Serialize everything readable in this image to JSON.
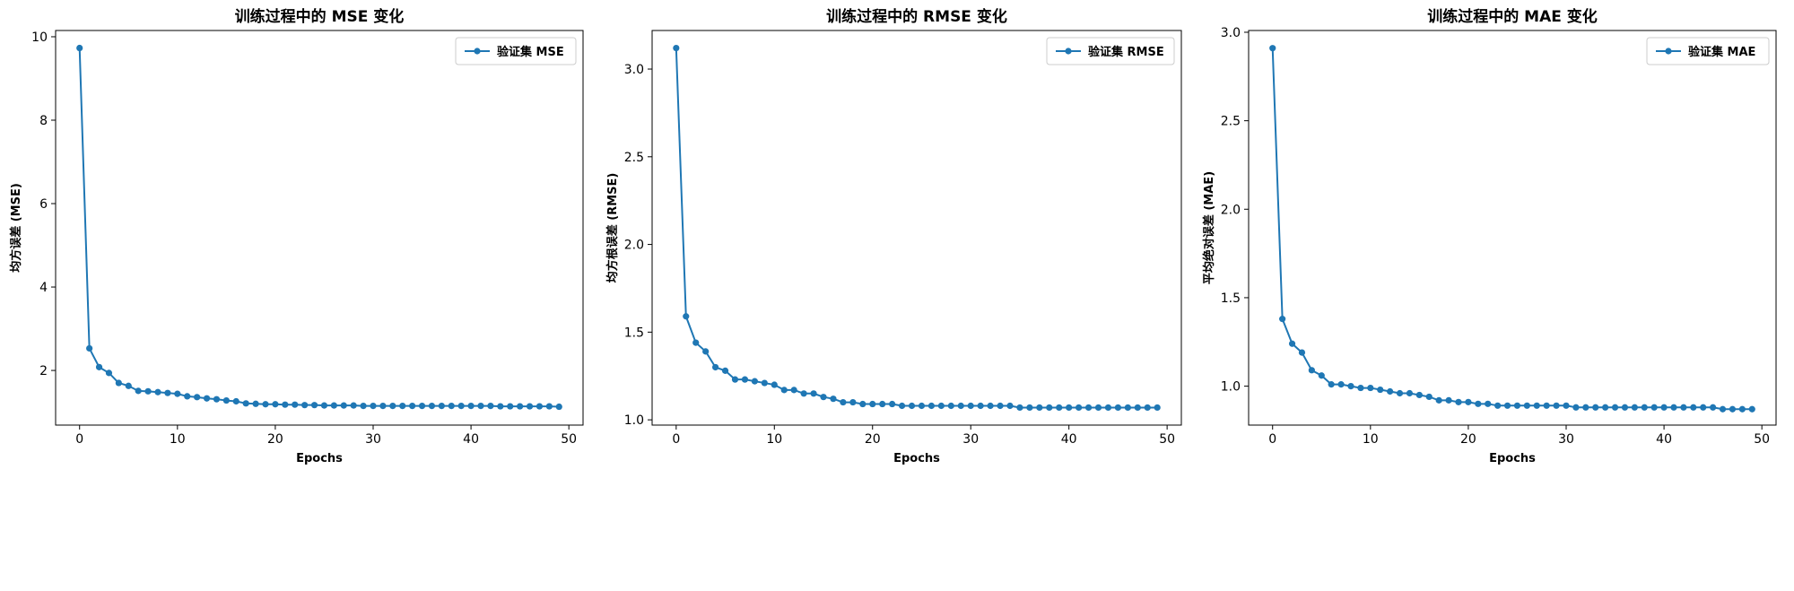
{
  "colors": {
    "series": "#1f77b4",
    "axis": "#000000",
    "legend_border": "#cccccc"
  },
  "chart_data": [
    {
      "type": "line",
      "title": "训练过程中的 MSE 变化",
      "xlabel": "Epochs",
      "ylabel": "均方误差 (MSE)",
      "xlim": [
        -2.45,
        51.45
      ],
      "ylim": [
        0.69,
        10.15
      ],
      "xticks": [
        0,
        10,
        20,
        30,
        40,
        50
      ],
      "yticks": [
        2,
        4,
        6,
        8,
        10
      ],
      "legend": "upper right",
      "grid": false,
      "series": [
        {
          "name": "验证集 MSE",
          "x": [
            0,
            1,
            2,
            3,
            4,
            5,
            6,
            7,
            8,
            9,
            10,
            11,
            12,
            13,
            14,
            15,
            16,
            17,
            18,
            19,
            20,
            21,
            22,
            23,
            24,
            25,
            26,
            27,
            28,
            29,
            30,
            31,
            32,
            33,
            34,
            35,
            36,
            37,
            38,
            39,
            40,
            41,
            42,
            43,
            44,
            45,
            46,
            47,
            48,
            49
          ],
          "y": [
            9.73,
            2.53,
            2.08,
            1.94,
            1.7,
            1.63,
            1.51,
            1.5,
            1.48,
            1.46,
            1.44,
            1.38,
            1.36,
            1.33,
            1.31,
            1.28,
            1.26,
            1.21,
            1.2,
            1.19,
            1.19,
            1.18,
            1.18,
            1.17,
            1.17,
            1.16,
            1.16,
            1.16,
            1.16,
            1.15,
            1.15,
            1.15,
            1.15,
            1.15,
            1.15,
            1.15,
            1.15,
            1.15,
            1.15,
            1.15,
            1.15,
            1.15,
            1.15,
            1.14,
            1.14,
            1.14,
            1.14,
            1.14,
            1.14,
            1.13
          ]
        }
      ]
    },
    {
      "type": "line",
      "title": "训练过程中的 RMSE 变化",
      "xlabel": "Epochs",
      "ylabel": "均方根误差 (RMSE)",
      "xlim": [
        -2.45,
        51.45
      ],
      "ylim": [
        0.97,
        3.22
      ],
      "xticks": [
        0,
        10,
        20,
        30,
        40,
        50
      ],
      "yticks": [
        1.0,
        1.5,
        2.0,
        2.5,
        3.0
      ],
      "ytick_labels": [
        "1.0",
        "1.5",
        "2.0",
        "2.5",
        "3.0"
      ],
      "legend": "upper right",
      "grid": false,
      "series": [
        {
          "name": "验证集 RMSE",
          "x": [
            0,
            1,
            2,
            3,
            4,
            5,
            6,
            7,
            8,
            9,
            10,
            11,
            12,
            13,
            14,
            15,
            16,
            17,
            18,
            19,
            20,
            21,
            22,
            23,
            24,
            25,
            26,
            27,
            28,
            29,
            30,
            31,
            32,
            33,
            34,
            35,
            36,
            37,
            38,
            39,
            40,
            41,
            42,
            43,
            44,
            45,
            46,
            47,
            48,
            49
          ],
          "y": [
            3.12,
            1.59,
            1.44,
            1.39,
            1.3,
            1.28,
            1.23,
            1.23,
            1.22,
            1.21,
            1.2,
            1.17,
            1.17,
            1.15,
            1.15,
            1.13,
            1.12,
            1.1,
            1.1,
            1.09,
            1.09,
            1.09,
            1.09,
            1.08,
            1.08,
            1.08,
            1.08,
            1.08,
            1.08,
            1.08,
            1.08,
            1.08,
            1.08,
            1.08,
            1.08,
            1.07,
            1.07,
            1.07,
            1.07,
            1.07,
            1.07,
            1.07,
            1.07,
            1.07,
            1.07,
            1.07,
            1.07,
            1.07,
            1.07,
            1.07
          ]
        }
      ]
    },
    {
      "type": "line",
      "title": "训练过程中的 MAE 变化",
      "xlabel": "Epochs",
      "ylabel": "平均绝对误差 (MAE)",
      "xlim": [
        -2.45,
        51.45
      ],
      "ylim": [
        0.78,
        3.01
      ],
      "xticks": [
        0,
        10,
        20,
        30,
        40,
        50
      ],
      "yticks": [
        1.0,
        1.5,
        2.0,
        2.5,
        3.0
      ],
      "ytick_labels": [
        "1.0",
        "1.5",
        "2.0",
        "2.5",
        "3.0"
      ],
      "legend": "upper right",
      "grid": false,
      "series": [
        {
          "name": "验证集 MAE",
          "x": [
            0,
            1,
            2,
            3,
            4,
            5,
            6,
            7,
            8,
            9,
            10,
            11,
            12,
            13,
            14,
            15,
            16,
            17,
            18,
            19,
            20,
            21,
            22,
            23,
            24,
            25,
            26,
            27,
            28,
            29,
            30,
            31,
            32,
            33,
            34,
            35,
            36,
            37,
            38,
            39,
            40,
            41,
            42,
            43,
            44,
            45,
            46,
            47,
            48,
            49
          ],
          "y": [
            2.91,
            1.38,
            1.24,
            1.19,
            1.09,
            1.06,
            1.01,
            1.01,
            1.0,
            0.99,
            0.99,
            0.98,
            0.97,
            0.96,
            0.96,
            0.95,
            0.94,
            0.92,
            0.92,
            0.91,
            0.91,
            0.9,
            0.9,
            0.89,
            0.89,
            0.89,
            0.89,
            0.89,
            0.89,
            0.89,
            0.89,
            0.88,
            0.88,
            0.88,
            0.88,
            0.88,
            0.88,
            0.88,
            0.88,
            0.88,
            0.88,
            0.88,
            0.88,
            0.88,
            0.88,
            0.88,
            0.87,
            0.87,
            0.87,
            0.87
          ]
        }
      ]
    }
  ]
}
